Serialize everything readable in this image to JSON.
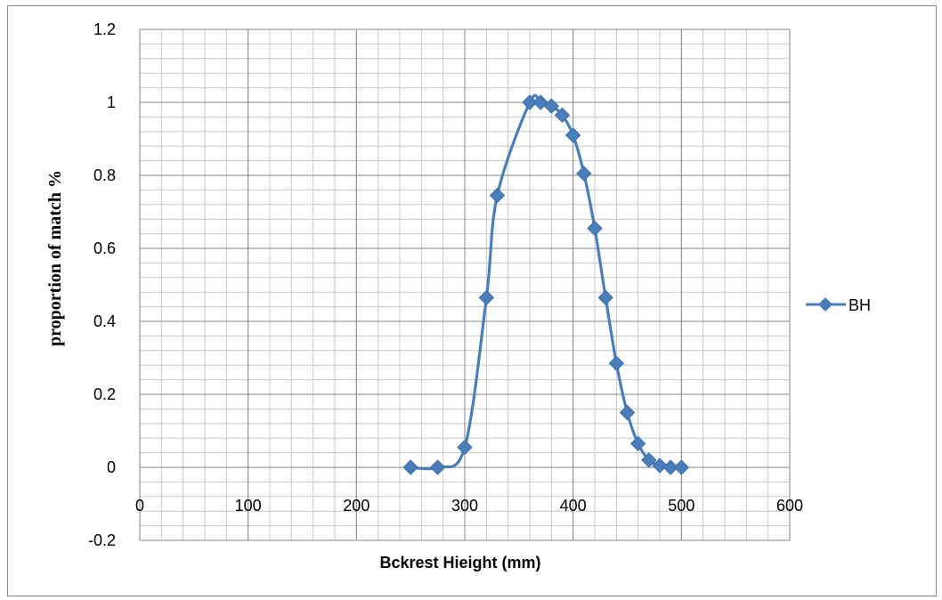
{
  "chart_data": {
    "type": "line",
    "title": "",
    "xlabel": "Bckrest Hieight (mm)",
    "ylabel": "proportion of match %",
    "xlim": [
      0,
      600
    ],
    "ylim": [
      -0.2,
      1.2
    ],
    "x_ticks": [
      "0",
      "100",
      "200",
      "300",
      "400",
      "500",
      "600"
    ],
    "y_ticks": [
      "-0.2",
      "0",
      "0.2",
      "0.4",
      "0.6",
      "0.8",
      "1",
      "1.2"
    ],
    "grid": true,
    "legend_position": "right",
    "series": [
      {
        "name": "BH",
        "color": "#4a7ebb",
        "marker": "diamond",
        "x": [
          250,
          275,
          300,
          320,
          330,
          360,
          370,
          380,
          390,
          400,
          410,
          420,
          430,
          440,
          450,
          460,
          470,
          480,
          490,
          500
        ],
        "y": [
          0,
          0,
          0.055,
          0.465,
          0.745,
          1.0,
          1.0,
          0.99,
          0.965,
          0.91,
          0.805,
          0.655,
          0.465,
          0.285,
          0.15,
          0.065,
          0.02,
          0.005,
          0,
          0
        ]
      }
    ]
  }
}
